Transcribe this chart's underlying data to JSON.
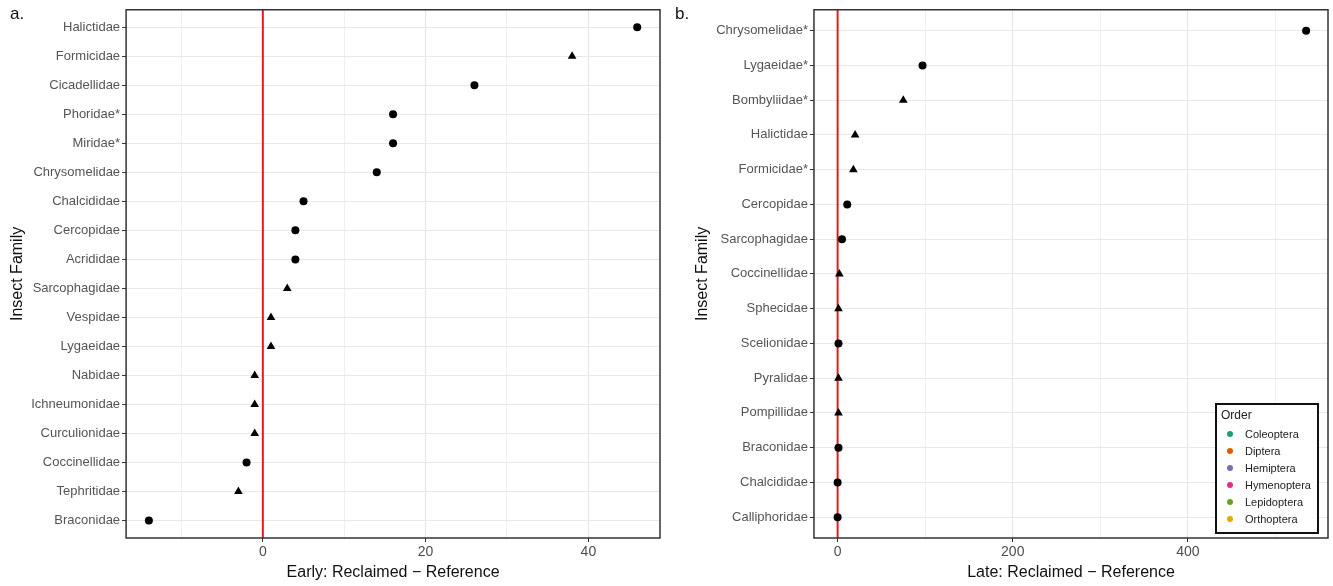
{
  "chart_data": [
    {
      "type": "scatter",
      "orientation": "horizontal",
      "title": "a.",
      "xlabel": "Early: Reclaimed − Reference",
      "ylabel": "Insect Family",
      "categories": [
        "Halictidae",
        "Formicidae",
        "Cicadellidae",
        "Phoridae*",
        "Miridae*",
        "Chrysomelidae",
        "Chalcididae",
        "Cercopidae",
        "Acrididae",
        "Sarcophagidae",
        "Vespidae",
        "Lygaeidae",
        "Nabidae",
        "Ichneumonidae",
        "Curculionidae",
        "Coccinellidae",
        "Tephritidae",
        "Braconidae"
      ],
      "series": [
        {
          "color": "#000000",
          "marker": "circle",
          "values": [
            46,
            null,
            26,
            16,
            16,
            14,
            5,
            4,
            4,
            null,
            null,
            null,
            null,
            null,
            null,
            -2,
            null,
            -14
          ]
        },
        {
          "color": "#000000",
          "marker": "triangle",
          "values": [
            null,
            38,
            null,
            null,
            null,
            null,
            null,
            null,
            null,
            3,
            1,
            1,
            -1,
            -1,
            -1,
            null,
            -3,
            null
          ]
        }
      ],
      "xlim": [
        -16.8,
        48.8
      ],
      "xticks": [
        {
          "value": -10,
          "label": null
        },
        0,
        {
          "value": 10,
          "label": null
        },
        20,
        {
          "value": 30,
          "label": null
        },
        40
      ],
      "ref_lines": [
        {
          "axis": "x",
          "value": 0,
          "color": "#e41a1c"
        }
      ],
      "grid": true,
      "legend": false
    },
    {
      "type": "scatter",
      "orientation": "horizontal",
      "title": "b.",
      "xlabel": "Late: Reclaimed − Reference",
      "ylabel": "Insect Family",
      "legend_title": "Order",
      "categories": [
        "Chrysomelidae*",
        "Lygaeidae*",
        "Bombyliidae*",
        "Halictidae",
        "Formicidae*",
        "Cercopidae",
        "Sarcophagidae",
        "Coccinellidae",
        "Sphecidae",
        "Scelionidae",
        "Pyralidae",
        "Pompillidae",
        "Braconidae",
        "Chalcididae",
        "Calliphoridae"
      ],
      "series": [
        {
          "color": "#000000",
          "marker": "circle",
          "values": [
            535,
            97,
            null,
            null,
            null,
            11,
            5,
            null,
            null,
            1,
            null,
            null,
            1,
            0,
            0
          ]
        },
        {
          "color": "#000000",
          "marker": "triangle",
          "values": [
            null,
            null,
            75,
            20,
            18,
            null,
            null,
            2,
            1,
            null,
            1,
            1,
            null,
            null,
            null
          ]
        },
        {
          "name": "Coleoptera",
          "color": "#1b9e77",
          "marker": "circle",
          "values": [
            null,
            null,
            null,
            null,
            null,
            null,
            null,
            null,
            null,
            null,
            null,
            null,
            null,
            null,
            null
          ]
        },
        {
          "name": "Diptera",
          "color": "#d95f02",
          "marker": "circle",
          "values": [
            null,
            null,
            null,
            null,
            null,
            null,
            null,
            null,
            null,
            null,
            null,
            null,
            null,
            null,
            null
          ]
        },
        {
          "name": "Hemiptera",
          "color": "#7570b3",
          "marker": "circle",
          "values": [
            null,
            null,
            null,
            null,
            null,
            null,
            null,
            null,
            null,
            null,
            null,
            null,
            null,
            null,
            null
          ]
        },
        {
          "name": "Hymenoptera",
          "color": "#e7298a",
          "marker": "circle",
          "values": [
            null,
            null,
            null,
            null,
            null,
            null,
            null,
            null,
            null,
            null,
            null,
            null,
            null,
            null,
            null
          ]
        },
        {
          "name": "Lepidoptera",
          "color": "#66a61e",
          "marker": "circle",
          "values": [
            null,
            null,
            null,
            null,
            null,
            null,
            null,
            null,
            null,
            null,
            null,
            null,
            null,
            null,
            null
          ]
        },
        {
          "name": "Orthoptera",
          "color": "#e6ab02",
          "marker": "circle",
          "values": [
            null,
            null,
            null,
            null,
            null,
            null,
            null,
            null,
            null,
            null,
            null,
            null,
            null,
            null,
            null
          ]
        }
      ],
      "xlim": [
        -27,
        560
      ],
      "xticks": [
        0,
        {
          "value": 100,
          "label": null
        },
        200,
        {
          "value": 300,
          "label": null
        },
        400,
        {
          "value": 500,
          "label": null
        }
      ],
      "ref_lines": [
        {
          "axis": "x",
          "value": 0,
          "color": "#e41a1c"
        }
      ],
      "grid": true,
      "legend": "bottom right"
    }
  ]
}
